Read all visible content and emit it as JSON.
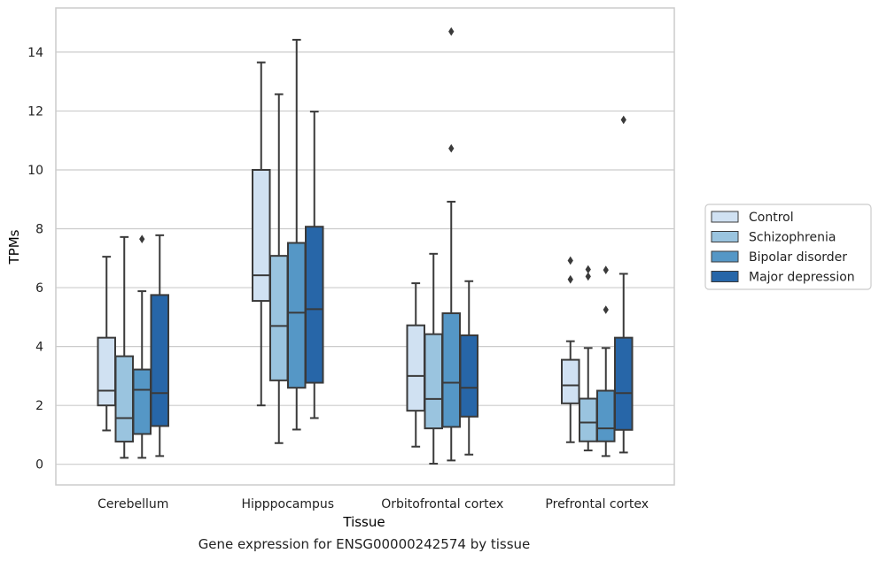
{
  "chart_data": {
    "type": "boxplot",
    "xlabel": "Tissue",
    "ylabel": "TPMs",
    "caption": "Gene expression for ENSG00000242574 by tissue",
    "ylim": [
      -0.7,
      15.5
    ],
    "yticks": [
      0,
      2,
      4,
      6,
      8,
      10,
      12,
      14
    ],
    "grid": "horizontal",
    "legend_position": "right",
    "categories": [
      "Cerebellum",
      "Hipppocampus",
      "Orbitofrontal cortex",
      "Prefrontal cortex"
    ],
    "series": [
      {
        "name": "Control",
        "color": "#d0e1f2",
        "boxes": [
          {
            "whislo": 1.15,
            "q1": 2.0,
            "med": 2.5,
            "q3": 4.3,
            "whishi": 7.05,
            "fliers": []
          },
          {
            "whislo": 2.0,
            "q1": 5.55,
            "med": 6.42,
            "q3": 10.0,
            "whishi": 13.65,
            "fliers": []
          },
          {
            "whislo": 0.6,
            "q1": 1.82,
            "med": 3.0,
            "q3": 4.72,
            "whishi": 6.15,
            "fliers": []
          },
          {
            "whislo": 0.75,
            "q1": 2.07,
            "med": 2.68,
            "q3": 3.55,
            "whishi": 4.18,
            "fliers": [
              6.28,
              6.92
            ]
          }
        ]
      },
      {
        "name": "Schizophrenia",
        "color": "#9ac4df",
        "boxes": [
          {
            "whislo": 0.22,
            "q1": 0.77,
            "med": 1.57,
            "q3": 3.67,
            "whishi": 7.72,
            "fliers": []
          },
          {
            "whislo": 0.72,
            "q1": 2.85,
            "med": 4.7,
            "q3": 7.08,
            "whishi": 12.57,
            "fliers": []
          },
          {
            "whislo": 0.02,
            "q1": 1.22,
            "med": 2.22,
            "q3": 4.42,
            "whishi": 7.15,
            "fliers": []
          },
          {
            "whislo": 0.47,
            "q1": 0.78,
            "med": 1.42,
            "q3": 2.23,
            "whishi": 3.95,
            "fliers": [
              6.38,
              6.62
            ]
          }
        ]
      },
      {
        "name": "Bipolar disorder",
        "color": "#5597c6",
        "boxes": [
          {
            "whislo": 0.22,
            "q1": 1.03,
            "med": 2.53,
            "q3": 3.22,
            "whishi": 5.88,
            "fliers": [
              7.65
            ]
          },
          {
            "whislo": 1.18,
            "q1": 2.6,
            "med": 5.15,
            "q3": 7.52,
            "whishi": 14.42,
            "fliers": []
          },
          {
            "whislo": 0.13,
            "q1": 1.27,
            "med": 2.77,
            "q3": 5.13,
            "whishi": 8.92,
            "fliers": [
              10.73,
              14.7
            ]
          },
          {
            "whislo": 0.28,
            "q1": 0.78,
            "med": 1.22,
            "q3": 2.5,
            "whishi": 3.95,
            "fliers": [
              5.25,
              6.6
            ]
          }
        ]
      },
      {
        "name": "Major depression",
        "color": "#2766a8",
        "boxes": [
          {
            "whislo": 0.28,
            "q1": 1.3,
            "med": 2.42,
            "q3": 5.75,
            "whishi": 7.78,
            "fliers": []
          },
          {
            "whislo": 1.57,
            "q1": 2.77,
            "med": 5.27,
            "q3": 8.07,
            "whishi": 11.98,
            "fliers": []
          },
          {
            "whislo": 0.33,
            "q1": 1.62,
            "med": 2.6,
            "q3": 4.38,
            "whishi": 6.22,
            "fliers": []
          },
          {
            "whislo": 0.4,
            "q1": 1.17,
            "med": 2.42,
            "q3": 4.3,
            "whishi": 6.47,
            "fliers": [
              11.7
            ]
          }
        ]
      }
    ]
  },
  "style": {
    "box_edge_color": "#3a3a3a",
    "grid_color": "#cccccc",
    "frame_color": "#cccccc",
    "text_color": "#222222"
  }
}
